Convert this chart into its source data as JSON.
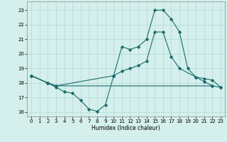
{
  "xlabel": "Humidex (Indice chaleur)",
  "bg_color": "#d4efec",
  "grid_color": "#b8ddd9",
  "line_color": "#1a6b6b",
  "xlim": [
    -0.5,
    23.5
  ],
  "ylim": [
    15.7,
    23.6
  ],
  "yticks": [
    16,
    17,
    18,
    19,
    20,
    21,
    22,
    23
  ],
  "xticks": [
    0,
    1,
    2,
    3,
    4,
    5,
    6,
    7,
    8,
    9,
    10,
    11,
    12,
    13,
    14,
    15,
    16,
    17,
    18,
    19,
    20,
    21,
    22,
    23
  ],
  "line1_x": [
    0,
    2,
    3,
    4,
    5,
    6,
    7,
    8,
    9,
    10,
    11,
    12,
    13,
    14,
    15,
    16,
    17,
    18,
    19,
    20,
    21,
    22
  ],
  "line1_y": [
    18.5,
    18.0,
    17.7,
    17.4,
    17.3,
    16.8,
    16.2,
    16.05,
    16.5,
    18.5,
    20.5,
    20.3,
    20.5,
    21.0,
    23.0,
    23.0,
    22.4,
    21.5,
    19.0,
    18.4,
    18.1,
    17.8
  ],
  "line2_x": [
    0,
    2,
    3,
    10,
    11,
    12,
    13,
    14,
    15,
    16,
    17,
    18,
    20,
    21,
    22,
    23
  ],
  "line2_y": [
    18.5,
    18.0,
    17.8,
    18.5,
    18.8,
    19.0,
    19.2,
    19.5,
    21.5,
    21.5,
    19.8,
    19.0,
    18.4,
    18.3,
    18.2,
    17.7
  ],
  "line3_x": [
    0,
    2,
    3,
    22,
    23
  ],
  "line3_y": [
    18.5,
    18.0,
    17.8,
    17.8,
    17.7
  ]
}
